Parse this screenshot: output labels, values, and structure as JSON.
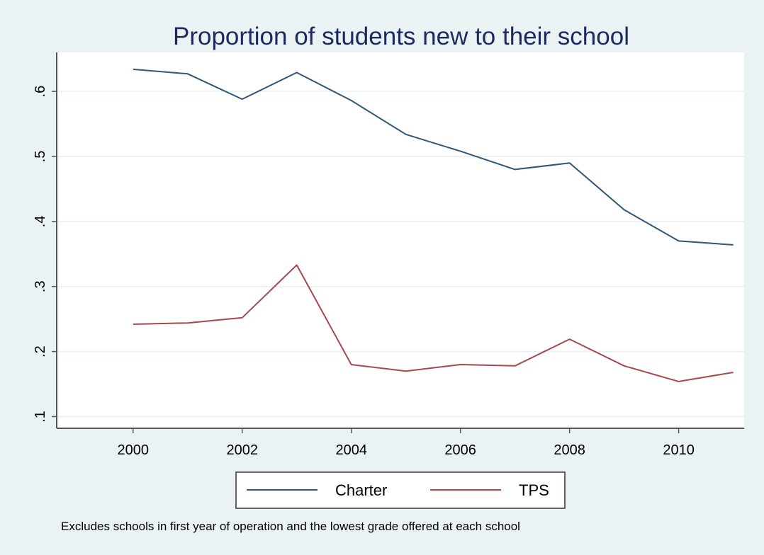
{
  "chart_data": {
    "type": "line",
    "title": "Proportion of students new to their school",
    "note": "Excludes schools in first year of operation and the lowest grade offered at each school",
    "x": [
      2000,
      2001,
      2002,
      2003,
      2004,
      2005,
      2006,
      2007,
      2008,
      2009,
      2010,
      2011
    ],
    "x_ticks": [
      2000,
      2002,
      2004,
      2006,
      2008,
      2010
    ],
    "x_tick_labels": [
      "2000",
      "2002",
      "2004",
      "2006",
      "2008",
      "2010"
    ],
    "y_ticks": [
      0.1,
      0.2,
      0.3,
      0.4,
      0.5,
      0.6
    ],
    "y_tick_labels": [
      ".1",
      ".2",
      ".3",
      ".4",
      ".5",
      ".6"
    ],
    "xlim": [
      1998.6,
      2011.2
    ],
    "ylim": [
      0.082,
      0.66
    ],
    "grid": true,
    "legend_position": "bottom",
    "series": [
      {
        "name": "Charter",
        "color": "#2f5577",
        "values": [
          0.634,
          0.627,
          0.588,
          0.629,
          0.586,
          0.534,
          0.508,
          0.48,
          0.49,
          0.418,
          0.37,
          0.364
        ]
      },
      {
        "name": "TPS",
        "color": "#a8484b",
        "values": [
          0.242,
          0.244,
          0.252,
          0.333,
          0.18,
          0.17,
          0.18,
          0.178,
          0.219,
          0.178,
          0.154,
          0.168
        ]
      }
    ]
  }
}
